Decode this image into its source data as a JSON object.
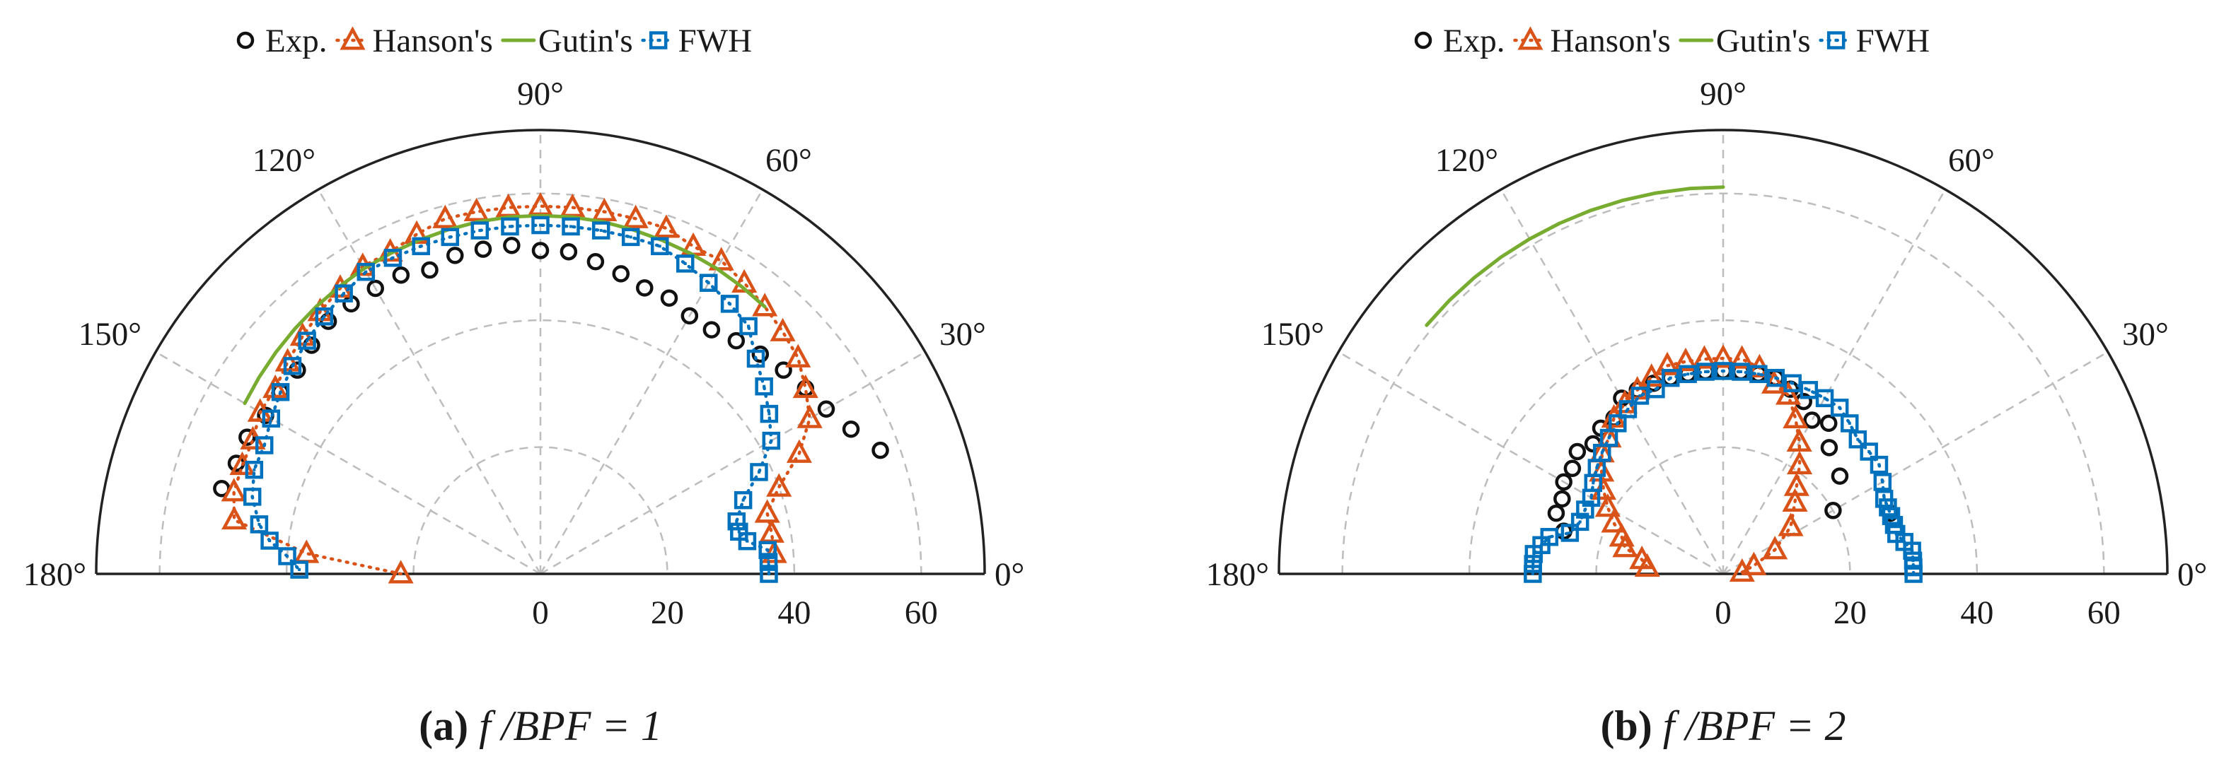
{
  "colors": {
    "exp": "#111111",
    "hanson": "#D95319",
    "gutin": "#77AC30",
    "fwh": "#0072BD",
    "grid": "#bdbdbd",
    "axis": "#222222"
  },
  "chart_data": [
    {
      "type": "scatter",
      "subtype": "polar-half",
      "caption": {
        "label": "(a)",
        "text": "f /BPF = 1"
      },
      "angle_labels": [
        "0°",
        "30°",
        "60°",
        "90°",
        "120°",
        "150°",
        "180°"
      ],
      "radial_ticks": [
        "0",
        "20",
        "40",
        "60"
      ],
      "rlim": [
        0,
        70
      ],
      "grid": true,
      "legend_position": "top",
      "series": [
        {
          "name": "Exp.",
          "marker": "circle",
          "line": "none",
          "points": [
            [
              20,
              57
            ],
            [
              25,
              54
            ],
            [
              30,
              52
            ],
            [
              35,
              51
            ],
            [
              40,
              50
            ],
            [
              45,
              49
            ],
            [
              50,
              48
            ],
            [
              55,
              47
            ],
            [
              60,
              47
            ],
            [
              65,
              48
            ],
            [
              70,
              48
            ],
            [
              75,
              49
            ],
            [
              80,
              50
            ],
            [
              85,
              51
            ],
            [
              90,
              51
            ],
            [
              95,
              52
            ],
            [
              100,
              52
            ],
            [
              105,
              52
            ],
            [
              110,
              51
            ],
            [
              115,
              52
            ],
            [
              120,
              52
            ],
            [
              125,
              52
            ],
            [
              130,
              52
            ],
            [
              135,
              51
            ],
            [
              140,
              50
            ],
            [
              145,
              50
            ],
            [
              150,
              50
            ],
            [
              155,
              51
            ],
            [
              160,
              51
            ],
            [
              165,
              52
            ]
          ]
        },
        {
          "name": "Hanson's",
          "marker": "triangle",
          "line": "dotted",
          "points": [
            [
              5,
              37
            ],
            [
              10,
              37
            ],
            [
              15,
              37
            ],
            [
              20,
              40
            ],
            [
              25,
              45
            ],
            [
              30,
              49
            ],
            [
              35,
              51
            ],
            [
              40,
              53
            ],
            [
              45,
              54
            ],
            [
              50,
              55
            ],
            [
              55,
              56
            ],
            [
              60,
              57
            ],
            [
              65,
              57
            ],
            [
              70,
              58
            ],
            [
              75,
              58
            ],
            [
              80,
              58
            ],
            [
              85,
              58
            ],
            [
              90,
              58
            ],
            [
              95,
              58
            ],
            [
              100,
              58
            ],
            [
              105,
              58
            ],
            [
              110,
              57
            ],
            [
              115,
              56
            ],
            [
              120,
              56
            ],
            [
              125,
              55
            ],
            [
              130,
              54
            ],
            [
              135,
              53
            ],
            [
              140,
              52
            ],
            [
              145,
              51
            ],
            [
              150,
              51
            ],
            [
              155,
              50
            ],
            [
              160,
              50
            ],
            [
              165,
              50
            ],
            [
              170,
              49
            ],
            [
              175,
              37
            ],
            [
              180,
              22
            ]
          ]
        },
        {
          "name": "Gutin's",
          "marker": "none",
          "line": "solid",
          "points": [
            [
              50,
              55
            ],
            [
              55,
              55.3
            ],
            [
              60,
              55.6
            ],
            [
              65,
              55.8
            ],
            [
              70,
              56
            ],
            [
              75,
              56.2
            ],
            [
              80,
              56.4
            ],
            [
              85,
              56.5
            ],
            [
              90,
              56.5
            ],
            [
              95,
              56.5
            ],
            [
              100,
              56.4
            ],
            [
              105,
              56.2
            ],
            [
              110,
              56
            ],
            [
              115,
              55.8
            ],
            [
              120,
              55.6
            ],
            [
              125,
              55.3
            ],
            [
              130,
              55
            ],
            [
              135,
              54.7
            ],
            [
              140,
              54.4
            ],
            [
              145,
              54.1
            ],
            [
              150,
              53.8
            ]
          ]
        },
        {
          "name": "FWH",
          "marker": "square",
          "line": "dotted",
          "points": [
            [
              0,
              36
            ],
            [
              3,
              36
            ],
            [
              6,
              36
            ],
            [
              9,
              33
            ],
            [
              12,
              32
            ],
            [
              15,
              32
            ],
            [
              20,
              34
            ],
            [
              25,
              38
            ],
            [
              30,
              42
            ],
            [
              35,
              44
            ],
            [
              40,
              46
            ],
            [
              45,
              48
            ],
            [
              50,
              51
            ],
            [
              55,
              52
            ],
            [
              60,
              53
            ],
            [
              65,
              54
            ],
            [
              70,
              55
            ],
            [
              75,
              55
            ],
            [
              80,
              55
            ],
            [
              85,
              55
            ],
            [
              90,
              55
            ],
            [
              95,
              55
            ],
            [
              100,
              55
            ],
            [
              105,
              55
            ],
            [
              110,
              55
            ],
            [
              115,
              55
            ],
            [
              120,
              55
            ],
            [
              125,
              54
            ],
            [
              130,
              53
            ],
            [
              135,
              52
            ],
            [
              140,
              51
            ],
            [
              145,
              50
            ],
            [
              150,
              49
            ],
            [
              155,
              48
            ],
            [
              160,
              48
            ],
            [
              165,
              47
            ],
            [
              170,
              45
            ],
            [
              173,
              43
            ],
            [
              176,
              40
            ],
            [
              179,
              38
            ]
          ]
        }
      ]
    },
    {
      "type": "scatter",
      "subtype": "polar-half",
      "caption": {
        "label": "(b)",
        "text": "f /BPF = 2"
      },
      "angle_labels": [
        "0°",
        "30°",
        "60°",
        "90°",
        "120°",
        "150°",
        "180°"
      ],
      "radial_ticks": [
        "0",
        "20",
        "40",
        "60"
      ],
      "rlim": [
        0,
        70
      ],
      "grid": true,
      "legend_position": "top",
      "series": [
        {
          "name": "Exp.",
          "marker": "circle",
          "line": "none",
          "points": [
            [
              20,
              28
            ],
            [
              30,
              20
            ],
            [
              40,
              24
            ],
            [
              50,
              26
            ],
            [
              55,
              29
            ],
            [
              60,
              28
            ],
            [
              65,
              30
            ],
            [
              70,
              31
            ],
            [
              75,
              32
            ],
            [
              80,
              32
            ],
            [
              85,
              32
            ],
            [
              90,
              32
            ],
            [
              95,
              32
            ],
            [
              100,
              32
            ],
            [
              105,
              32
            ],
            [
              110,
              32
            ],
            [
              115,
              32
            ],
            [
              120,
              32
            ],
            [
              125,
              30
            ],
            [
              130,
              30
            ],
            [
              135,
              29
            ],
            [
              140,
              30
            ],
            [
              145,
              29
            ],
            [
              150,
              29
            ],
            [
              155,
              28
            ],
            [
              160,
              28
            ],
            [
              165,
              26
            ]
          ]
        },
        {
          "name": "Hanson's",
          "marker": "triangle",
          "line": "dotted",
          "points": [
            [
              5,
              3
            ],
            [
              15,
              5
            ],
            [
              25,
              9
            ],
            [
              35,
              13
            ],
            [
              45,
              16
            ],
            [
              50,
              18
            ],
            [
              55,
              21
            ],
            [
              60,
              24
            ],
            [
              65,
              27
            ],
            [
              70,
              30
            ],
            [
              75,
              31
            ],
            [
              80,
              33
            ],
            [
              85,
              34
            ],
            [
              90,
              34
            ],
            [
              95,
              34
            ],
            [
              100,
              34
            ],
            [
              105,
              34
            ],
            [
              110,
              33
            ],
            [
              115,
              32
            ],
            [
              120,
              31
            ],
            [
              125,
              30
            ],
            [
              130,
              28
            ],
            [
              135,
              27
            ],
            [
              140,
              25
            ],
            [
              145,
              23
            ],
            [
              150,
              21
            ],
            [
              155,
              19
            ],
            [
              160,
              17
            ],
            [
              165,
              16
            ],
            [
              170,
              13
            ],
            [
              175,
              12
            ]
          ]
        },
        {
          "name": "Gutin's",
          "marker": "none",
          "line": "solid",
          "points": [
            [
              90,
              61
            ],
            [
              95,
              61
            ],
            [
              100,
              61
            ],
            [
              105,
              61
            ],
            [
              110,
              61
            ],
            [
              115,
              61
            ],
            [
              120,
              61
            ],
            [
              125,
              61
            ],
            [
              130,
              61
            ],
            [
              135,
              61
            ],
            [
              140,
              61
            ]
          ]
        },
        {
          "name": "FWH",
          "marker": "square",
          "line": "dotted",
          "points": [
            [
              0,
              30
            ],
            [
              2,
              30
            ],
            [
              4,
              30
            ],
            [
              7,
              30
            ],
            [
              10,
              29
            ],
            [
              13,
              28
            ],
            [
              16,
              28
            ],
            [
              19,
              28
            ],
            [
              22,
              28
            ],
            [
              25,
              28
            ],
            [
              30,
              29
            ],
            [
              35,
              30
            ],
            [
              40,
              30
            ],
            [
              45,
              30
            ],
            [
              50,
              31
            ],
            [
              55,
              32
            ],
            [
              60,
              32
            ],
            [
              65,
              32
            ],
            [
              70,
              32
            ],
            [
              75,
              32
            ],
            [
              80,
              32
            ],
            [
              85,
              32
            ],
            [
              90,
              32
            ],
            [
              95,
              32
            ],
            [
              100,
              32
            ],
            [
              105,
              32
            ],
            [
              110,
              31
            ],
            [
              115,
              31
            ],
            [
              120,
              30
            ],
            [
              125,
              29
            ],
            [
              130,
              28
            ],
            [
              135,
              27
            ],
            [
              140,
              26
            ],
            [
              145,
              25
            ],
            [
              150,
              24
            ],
            [
              155,
              24
            ],
            [
              160,
              24
            ],
            [
              165,
              25
            ],
            [
              168,
              28
            ],
            [
              171,
              29
            ],
            [
              174,
              30
            ],
            [
              177,
              30
            ],
            [
              180,
              30
            ]
          ]
        }
      ]
    }
  ]
}
